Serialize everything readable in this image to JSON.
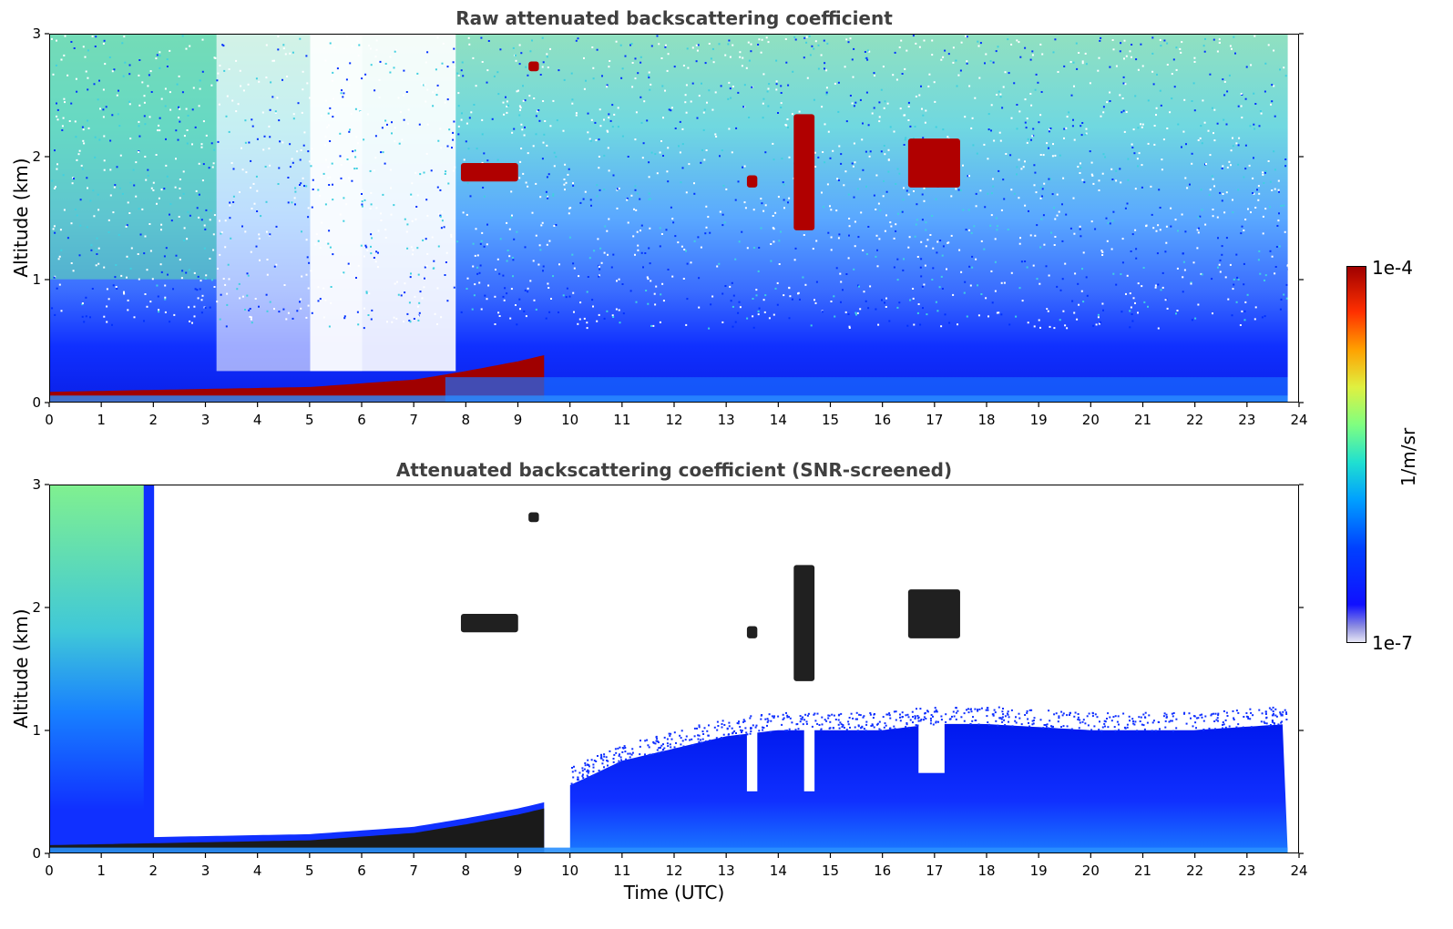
{
  "chart_data": [
    {
      "type": "heatmap",
      "title": "Raw attenuated backscattering coefficient",
      "xlabel": "",
      "ylabel": "Altitude (km)",
      "xlim": [
        0,
        24
      ],
      "ylim": [
        0,
        3
      ],
      "xticks": [
        "0",
        "1",
        "2",
        "3",
        "4",
        "5",
        "6",
        "7",
        "8",
        "9",
        "10",
        "11",
        "12",
        "13",
        "14",
        "15",
        "16",
        "17",
        "18",
        "19",
        "20",
        "21",
        "22",
        "23",
        "24"
      ],
      "yticks": [
        "0",
        "1",
        "2",
        "3"
      ],
      "colormap": "jet",
      "scale": "log",
      "features": {
        "surface_layer_top_km": [
          [
            0,
            0.08
          ],
          [
            5,
            0.12
          ],
          [
            7,
            0.18
          ],
          [
            8,
            0.25
          ],
          [
            9,
            0.33
          ],
          [
            9.5,
            0.38
          ]
        ],
        "clouds": [
          {
            "time_utc": [
              7.9,
              9.0
            ],
            "altitude_km": [
              1.8,
              1.95
            ]
          },
          {
            "time_utc": [
              9.2,
              9.4
            ],
            "altitude_km": [
              2.7,
              2.78
            ]
          },
          {
            "time_utc": [
              13.4,
              13.6
            ],
            "altitude_km": [
              1.75,
              1.85
            ]
          },
          {
            "time_utc": [
              14.3,
              14.7
            ],
            "altitude_km": [
              1.4,
              2.35
            ]
          },
          {
            "time_utc": [
              16.5,
              17.5
            ],
            "altitude_km": [
              1.75,
              2.15
            ]
          }
        ]
      }
    },
    {
      "type": "heatmap",
      "title": "Attenuated backscattering coefficient (SNR-screened)",
      "xlabel": "Time (UTC)",
      "ylabel": "Altitude (km)",
      "xlim": [
        0,
        24
      ],
      "ylim": [
        0,
        3
      ],
      "xticks": [
        "0",
        "1",
        "2",
        "3",
        "4",
        "5",
        "6",
        "7",
        "8",
        "9",
        "10",
        "11",
        "12",
        "13",
        "14",
        "15",
        "16",
        "17",
        "18",
        "19",
        "20",
        "21",
        "22",
        "23",
        "24"
      ],
      "yticks": [
        "0",
        "1",
        "2",
        "3"
      ],
      "colormap": "jet",
      "scale": "log",
      "features": {
        "boundary_layer_top_km": [
          [
            10,
            0.55
          ],
          [
            11,
            0.75
          ],
          [
            12,
            0.85
          ],
          [
            13,
            0.95
          ],
          [
            14,
            1.0
          ],
          [
            15,
            1.0
          ],
          [
            16,
            1.0
          ],
          [
            17,
            1.05
          ],
          [
            18,
            1.05
          ],
          [
            20,
            1.0
          ],
          [
            22,
            1.0
          ],
          [
            23.8,
            1.05
          ]
        ]
      }
    }
  ],
  "colorbar": {
    "max_label": "1e-4",
    "min_label": "1e-7",
    "units": "1/m/sr"
  },
  "colors": {
    "title": "#404040",
    "background": "#ffffff"
  }
}
